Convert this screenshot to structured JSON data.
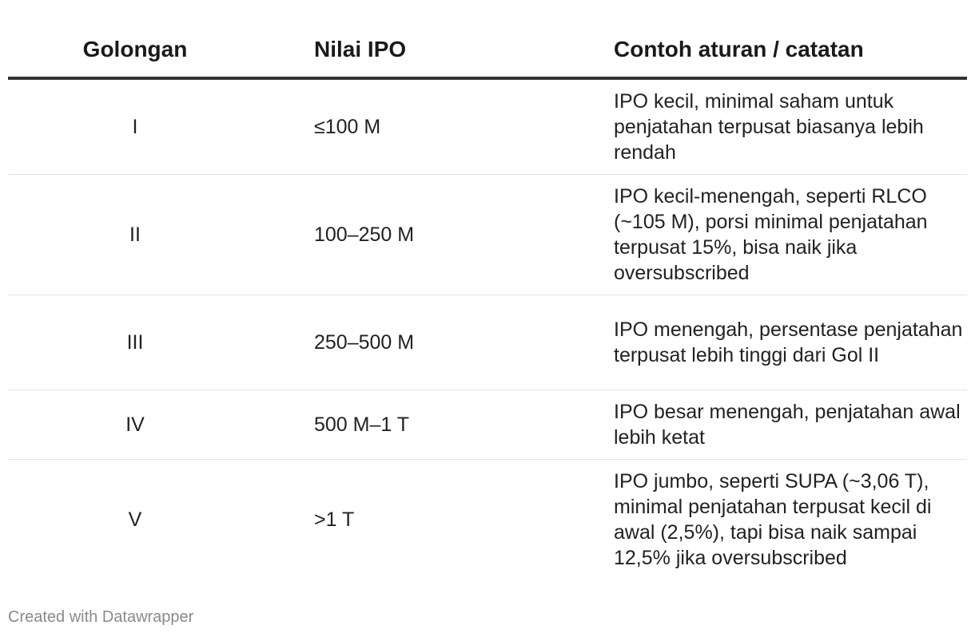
{
  "table": {
    "headers": {
      "golongan": "Golongan",
      "nilai": "Nilai IPO",
      "catatan": "Contoh aturan / catatan"
    },
    "rows": [
      {
        "golongan": "I",
        "nilai": "≤100 M",
        "catatan": "IPO kecil, minimal saham untuk penjatahan terpusat biasanya lebih rendah"
      },
      {
        "golongan": "II",
        "nilai": "100–250 M",
        "catatan": "IPO kecil-menengah, seperti RLCO (~105 M), porsi minimal penjatahan terpusat 15%, bisa naik jika oversubscribed"
      },
      {
        "golongan": "III",
        "nilai": "250–500 M",
        "catatan": "IPO menengah, persentase penjatahan terpusat lebih tinggi dari Gol II"
      },
      {
        "golongan": "IV",
        "nilai": "500 M–1 T",
        "catatan": "IPO besar menengah, penjatahan awal lebih ketat"
      },
      {
        "golongan": "V",
        "nilai": ">1 T",
        "catatan": "IPO jumbo, seperti SUPA (~3,06 T), minimal penjatahan terpusat kecil di awal (2,5%), tapi bisa naik sampai 12,5% jika oversubscribed"
      }
    ]
  },
  "footer": {
    "credit": "Created with Datawrapper"
  }
}
